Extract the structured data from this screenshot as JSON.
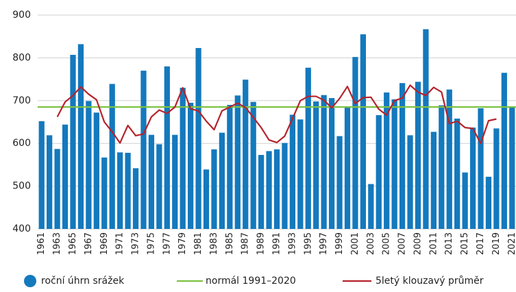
{
  "chart_data": {
    "type": "bar",
    "categories": [
      "1961",
      null,
      "1963",
      null,
      "1965",
      null,
      "1967",
      null,
      "1969",
      null,
      "1971",
      null,
      "1973",
      null,
      "1975",
      null,
      "1977",
      null,
      "1979",
      null,
      "1981",
      null,
      "1983",
      null,
      "1985",
      null,
      "1987",
      null,
      "1989",
      null,
      "1991",
      null,
      "1993",
      null,
      "1995",
      null,
      "1997",
      null,
      "1999",
      null,
      "2001",
      null,
      "2003",
      null,
      "2005",
      null,
      "2007",
      null,
      "2009",
      null,
      "2011",
      null,
      "2013",
      null,
      "2015",
      null,
      "2017",
      null,
      "2019",
      null,
      "2021"
    ],
    "series": [
      {
        "name": "roční úhrn srážek",
        "color": "#1479bd",
        "values": [
          652,
          619,
          587,
          644,
          807,
          832,
          699,
          672,
          567,
          739,
          579,
          578,
          542,
          770,
          620,
          598,
          780,
          620,
          730,
          695,
          823,
          539,
          586,
          625,
          690,
          712,
          749,
          697,
          573,
          582,
          586,
          601,
          667,
          656,
          777,
          698,
          713,
          706,
          617,
          686,
          802,
          855,
          505,
          666,
          719,
          703,
          741,
          619,
          744,
          867,
          627,
          689,
          726,
          658,
          532,
          637,
          682,
          522,
          635,
          765,
          684
        ]
      },
      {
        "name": "5letý klouzavý průměr",
        "color": "#b5232b",
        "type": "line",
        "values": [
          null,
          null,
          662,
          697,
          712,
          732,
          715,
          702,
          650,
          627,
          601,
          642,
          618,
          622,
          662,
          678,
          670,
          685,
          730,
          681,
          676,
          652,
          632,
          676,
          685,
          694,
          684,
          661,
          637,
          608,
          602,
          617,
          658,
          700,
          710,
          710,
          701,
          683,
          705,
          733,
          693,
          707,
          708,
          680,
          666,
          700,
          706,
          736,
          720,
          712,
          731,
          720,
          646,
          652,
          637,
          635,
          600,
          653,
          657,
          null,
          null
        ]
      }
    ],
    "normal": {
      "name": "normál 1991–2020",
      "color": "#7dc242",
      "value": 685
    },
    "ylim": [
      400,
      900
    ],
    "yticks": [
      400,
      500,
      600,
      700,
      800,
      900
    ],
    "grid": true
  }
}
